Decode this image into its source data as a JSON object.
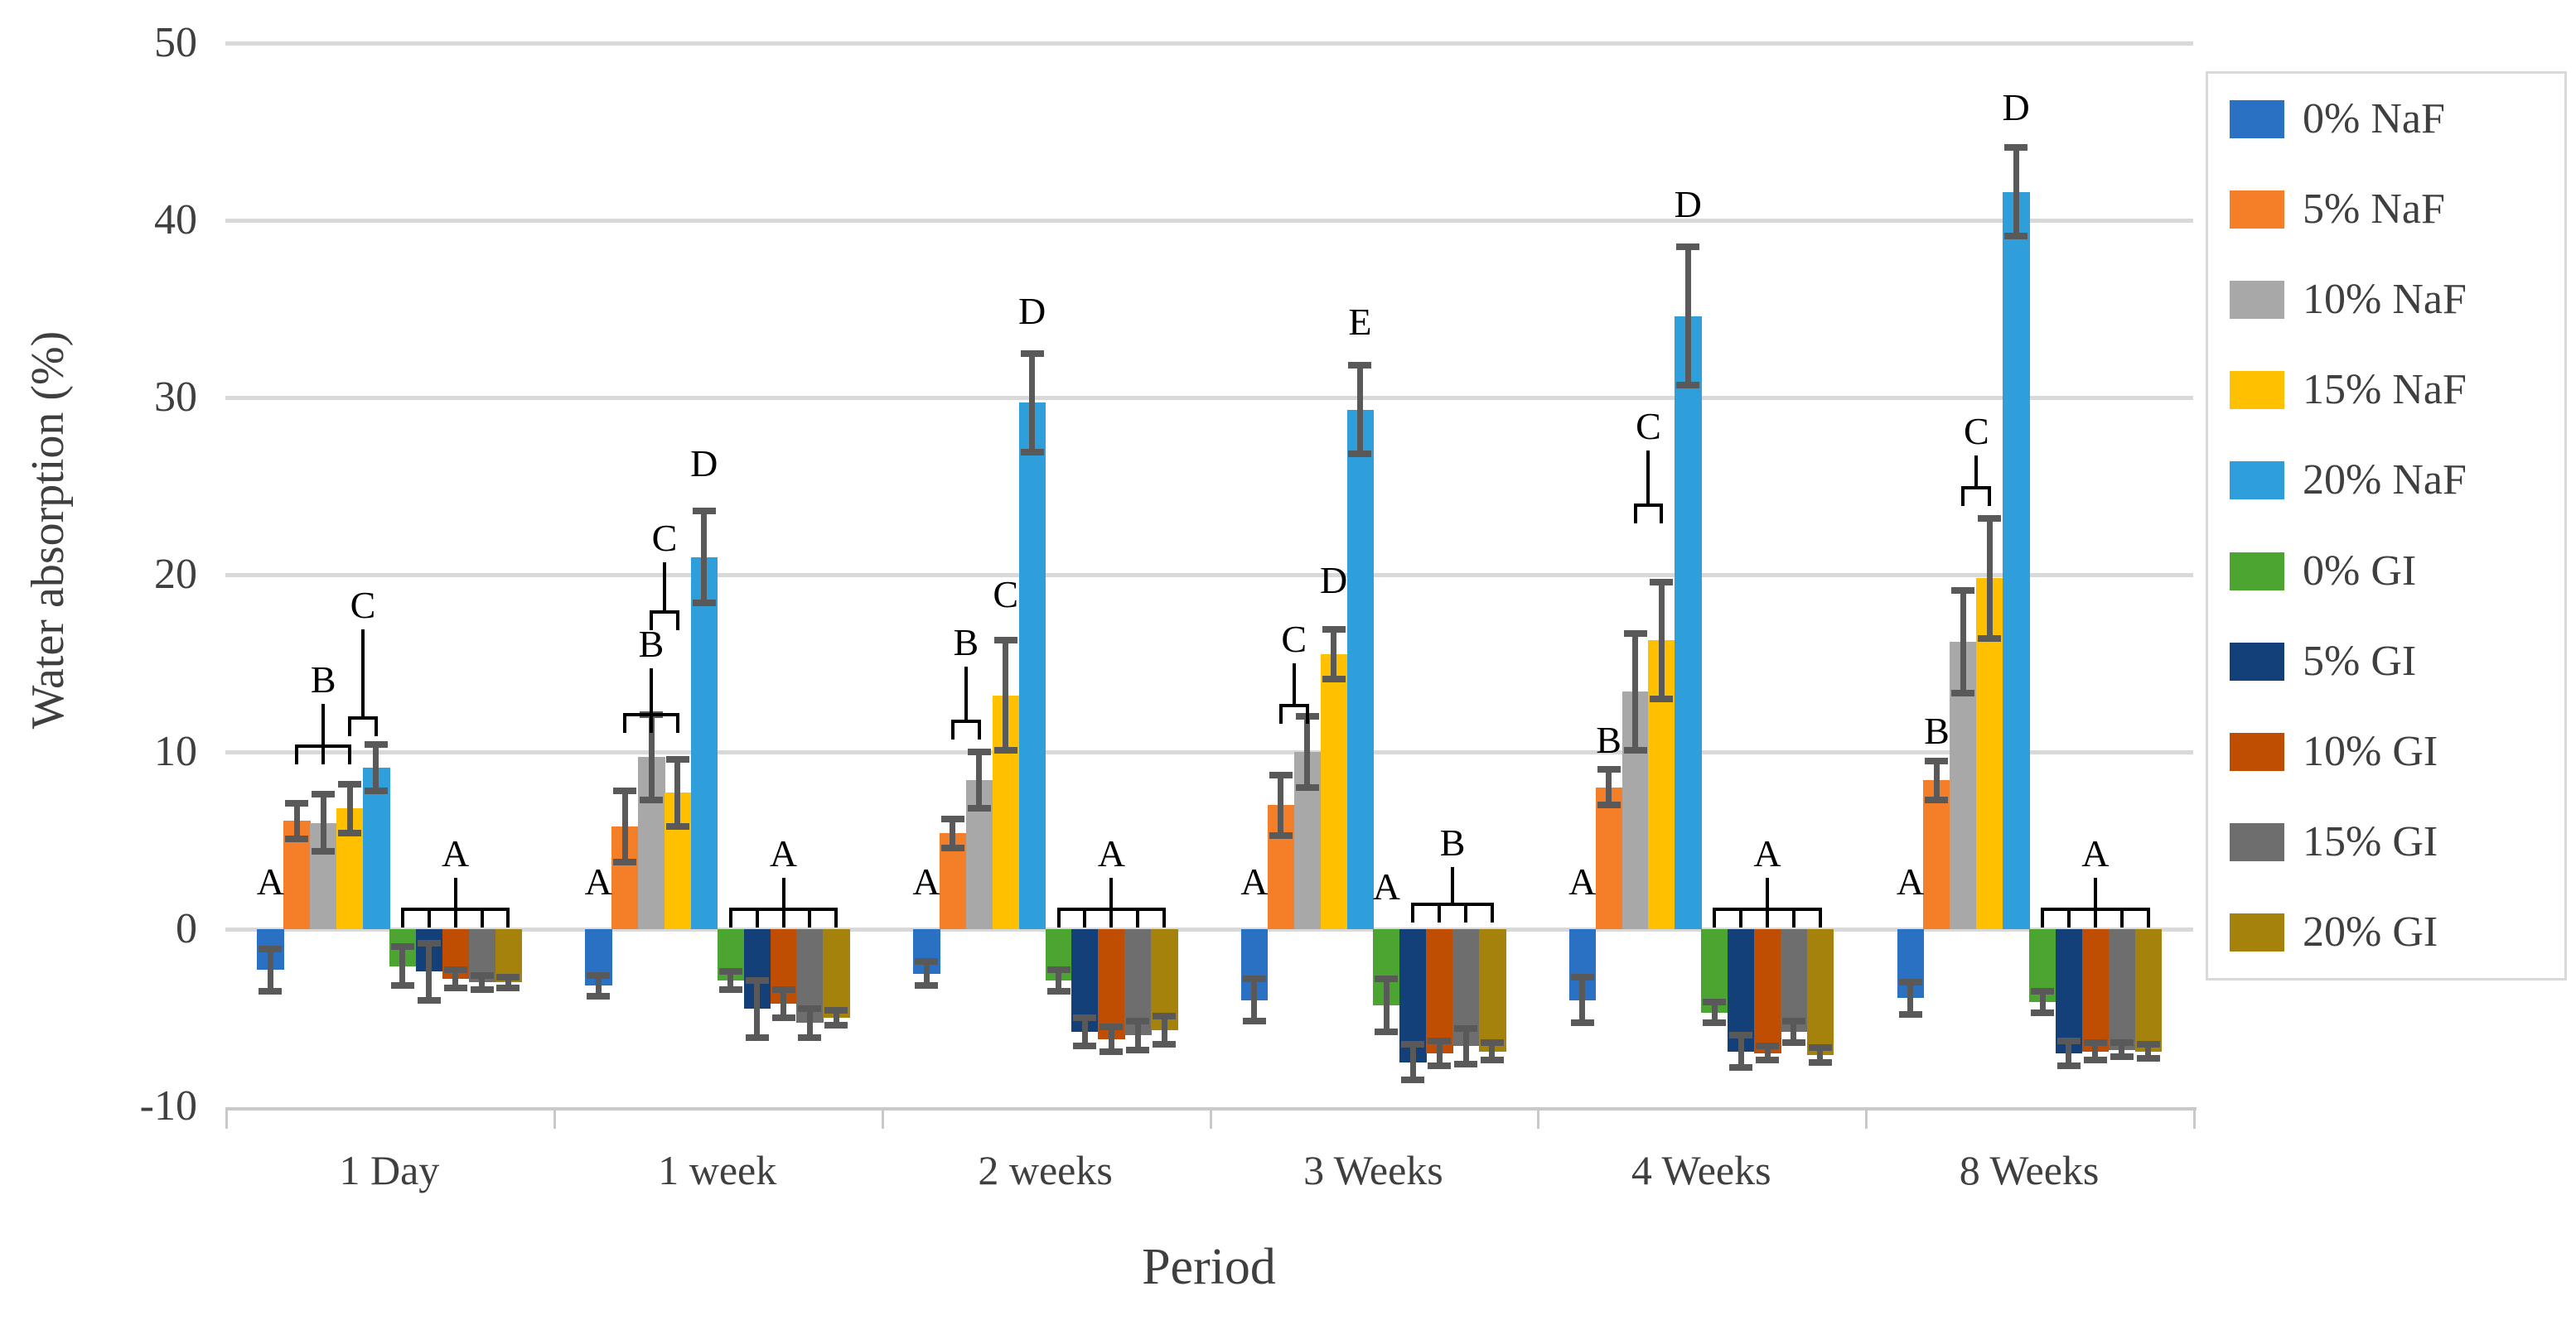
{
  "chart_data": {
    "type": "bar",
    "title": "",
    "xlabel": "Period",
    "ylabel": "Water absorption (%)",
    "ylim": [
      -10,
      50
    ],
    "yticks": [
      50,
      40,
      30,
      20,
      10,
      0,
      -10
    ],
    "grid": true,
    "legend_position": "right",
    "categories": [
      "1 Day",
      "1 week",
      "2 weeks",
      "3 Weeks",
      "4 Weeks",
      "8 Weeks"
    ],
    "series": [
      {
        "name": "0% NaF",
        "color": "#2A70C3",
        "values": [
          -2.3,
          -3.2,
          -2.5,
          -4.0,
          -4.0,
          -3.9
        ],
        "errors": [
          1.2,
          0.6,
          0.7,
          1.2,
          1.3,
          0.9
        ]
      },
      {
        "name": "5% NaF",
        "color": "#F57E28",
        "values": [
          6.1,
          5.8,
          5.4,
          7.0,
          8.0,
          8.4
        ],
        "errors": [
          1.0,
          2.0,
          0.8,
          1.7,
          1.0,
          1.1
        ]
      },
      {
        "name": "10% NaF",
        "color": "#A8A8A8",
        "values": [
          6.0,
          9.7,
          8.4,
          10.0,
          13.4,
          16.2
        ],
        "errors": [
          1.6,
          2.4,
          1.6,
          2.0,
          3.3,
          2.9
        ]
      },
      {
        "name": "15% NaF",
        "color": "#FFC000",
        "values": [
          6.8,
          7.7,
          13.2,
          15.5,
          16.3,
          19.8
        ],
        "errors": [
          1.4,
          1.9,
          3.1,
          1.4,
          3.3,
          3.4
        ]
      },
      {
        "name": "20% NaF",
        "color": "#2E9FDA",
        "values": [
          9.1,
          21.0,
          29.7,
          29.3,
          34.6,
          41.6
        ],
        "errors": [
          1.3,
          2.6,
          2.8,
          2.5,
          3.9,
          2.5
        ]
      },
      {
        "name": "0% GI",
        "color": "#4CA431",
        "values": [
          -2.1,
          -2.9,
          -2.9,
          -4.3,
          -4.7,
          -4.1
        ],
        "errors": [
          1.1,
          0.5,
          0.6,
          1.5,
          0.6,
          0.6
        ]
      },
      {
        "name": "5% GI",
        "color": "#14407A",
        "values": [
          -2.4,
          -4.5,
          -5.8,
          -7.5,
          -6.9,
          -7.0
        ],
        "errors": [
          1.6,
          1.6,
          0.8,
          1.0,
          0.9,
          0.7
        ]
      },
      {
        "name": "10% GI",
        "color": "#BF4D02",
        "values": [
          -2.8,
          -4.2,
          -6.2,
          -7.0,
          -7.0,
          -6.9
        ],
        "errors": [
          0.5,
          0.8,
          0.7,
          0.7,
          0.4,
          0.5
        ]
      },
      {
        "name": "15% GI",
        "color": "#6E6E6E",
        "values": [
          -3.0,
          -5.3,
          -6.0,
          -6.6,
          -5.8,
          -6.8
        ],
        "errors": [
          0.4,
          0.8,
          0.8,
          1.0,
          0.6,
          0.4
        ]
      },
      {
        "name": "20% GI",
        "color": "#A5820B",
        "values": [
          -3.0,
          -5.0,
          -5.7,
          -6.9,
          -7.1,
          -6.9
        ],
        "errors": [
          0.3,
          0.4,
          0.8,
          0.5,
          0.4,
          0.4
        ]
      }
    ],
    "annotations": [
      {
        "group": 0,
        "letter": "A",
        "from": 0,
        "to": 0,
        "letter_y": 1.6,
        "bracket_y": null
      },
      {
        "group": 0,
        "letter": "B",
        "from": 1,
        "to": 3,
        "letter_y": 13.0,
        "bracket_y": 10.4
      },
      {
        "group": 0,
        "letter": "C",
        "from": 3,
        "to": 4,
        "letter_y": 17.2,
        "bracket_y": 12.0
      },
      {
        "group": 0,
        "letter": "A",
        "from": 5,
        "to": 9,
        "letter_y": 3.2,
        "bracket_y": 1.2
      },
      {
        "group": 1,
        "letter": "A",
        "from": 0,
        "to": 0,
        "letter_y": 1.6,
        "bracket_y": null
      },
      {
        "group": 1,
        "letter": "B",
        "from": 1,
        "to": 3,
        "letter_y": 15.0,
        "bracket_y": 12.2
      },
      {
        "group": 1,
        "letter": "C",
        "from": 2,
        "to": 3,
        "letter_y": 21.0,
        "bracket_y": 18.0
      },
      {
        "group": 1,
        "letter": "D",
        "from": 4,
        "to": 4,
        "letter_y": 25.2,
        "bracket_y": null
      },
      {
        "group": 1,
        "letter": "A",
        "from": 5,
        "to": 9,
        "letter_y": 3.2,
        "bracket_y": 1.2
      },
      {
        "group": 2,
        "letter": "A",
        "from": 0,
        "to": 0,
        "letter_y": 1.6,
        "bracket_y": null
      },
      {
        "group": 2,
        "letter": "B",
        "from": 1,
        "to": 2,
        "letter_y": 15.1,
        "bracket_y": 11.8
      },
      {
        "group": 2,
        "letter": "C",
        "from": 3,
        "to": 3,
        "letter_y": 17.8,
        "bracket_y": null
      },
      {
        "group": 2,
        "letter": "D",
        "from": 4,
        "to": 4,
        "letter_y": 33.8,
        "bracket_y": null
      },
      {
        "group": 2,
        "letter": "A",
        "from": 5,
        "to": 9,
        "letter_y": 3.2,
        "bracket_y": 1.2
      },
      {
        "group": 3,
        "letter": "A",
        "from": 0,
        "to": 0,
        "letter_y": 1.6,
        "bracket_y": null
      },
      {
        "group": 3,
        "letter": "C",
        "from": 1,
        "to": 2,
        "letter_y": 15.3,
        "bracket_y": 12.7
      },
      {
        "group": 3,
        "letter": "D",
        "from": 3,
        "to": 3,
        "letter_y": 18.6,
        "bracket_y": null
      },
      {
        "group": 3,
        "letter": "E",
        "from": 4,
        "to": 4,
        "letter_y": 33.2,
        "bracket_y": null
      },
      {
        "group": 3,
        "letter": "A",
        "from": 5,
        "to": 5,
        "letter_y": 1.3,
        "bracket_y": null
      },
      {
        "group": 3,
        "letter": "B",
        "from": 6,
        "to": 9,
        "letter_y": 3.8,
        "bracket_y": 1.5
      },
      {
        "group": 4,
        "letter": "A",
        "from": 0,
        "to": 0,
        "letter_y": 1.6,
        "bracket_y": null
      },
      {
        "group": 4,
        "letter": "B",
        "from": 1,
        "to": 1,
        "letter_y": 9.6,
        "bracket_y": null
      },
      {
        "group": 4,
        "letter": "C",
        "from": 2,
        "to": 3,
        "letter_y": 27.3,
        "bracket_y": 24.0
      },
      {
        "group": 4,
        "letter": "D",
        "from": 4,
        "to": 4,
        "letter_y": 39.8,
        "bracket_y": null
      },
      {
        "group": 4,
        "letter": "A",
        "from": 5,
        "to": 9,
        "letter_y": 3.2,
        "bracket_y": 1.2
      },
      {
        "group": 5,
        "letter": "A",
        "from": 0,
        "to": 0,
        "letter_y": 1.6,
        "bracket_y": null
      },
      {
        "group": 5,
        "letter": "B",
        "from": 1,
        "to": 1,
        "letter_y": 10.1,
        "bracket_y": null
      },
      {
        "group": 5,
        "letter": "C",
        "from": 2,
        "to": 3,
        "letter_y": 27.0,
        "bracket_y": 25.0
      },
      {
        "group": 5,
        "letter": "D",
        "from": 4,
        "to": 4,
        "letter_y": 45.3,
        "bracket_y": null
      },
      {
        "group": 5,
        "letter": "A",
        "from": 5,
        "to": 9,
        "letter_y": 3.2,
        "bracket_y": 1.2
      }
    ]
  },
  "style_colors": {
    "grid": "#D9D9D9",
    "axis_line": "#C9C9C9",
    "error_bar": "#595959",
    "text": "#3F3F3F",
    "annotation": "#000000",
    "background": "#FFFFFF"
  }
}
